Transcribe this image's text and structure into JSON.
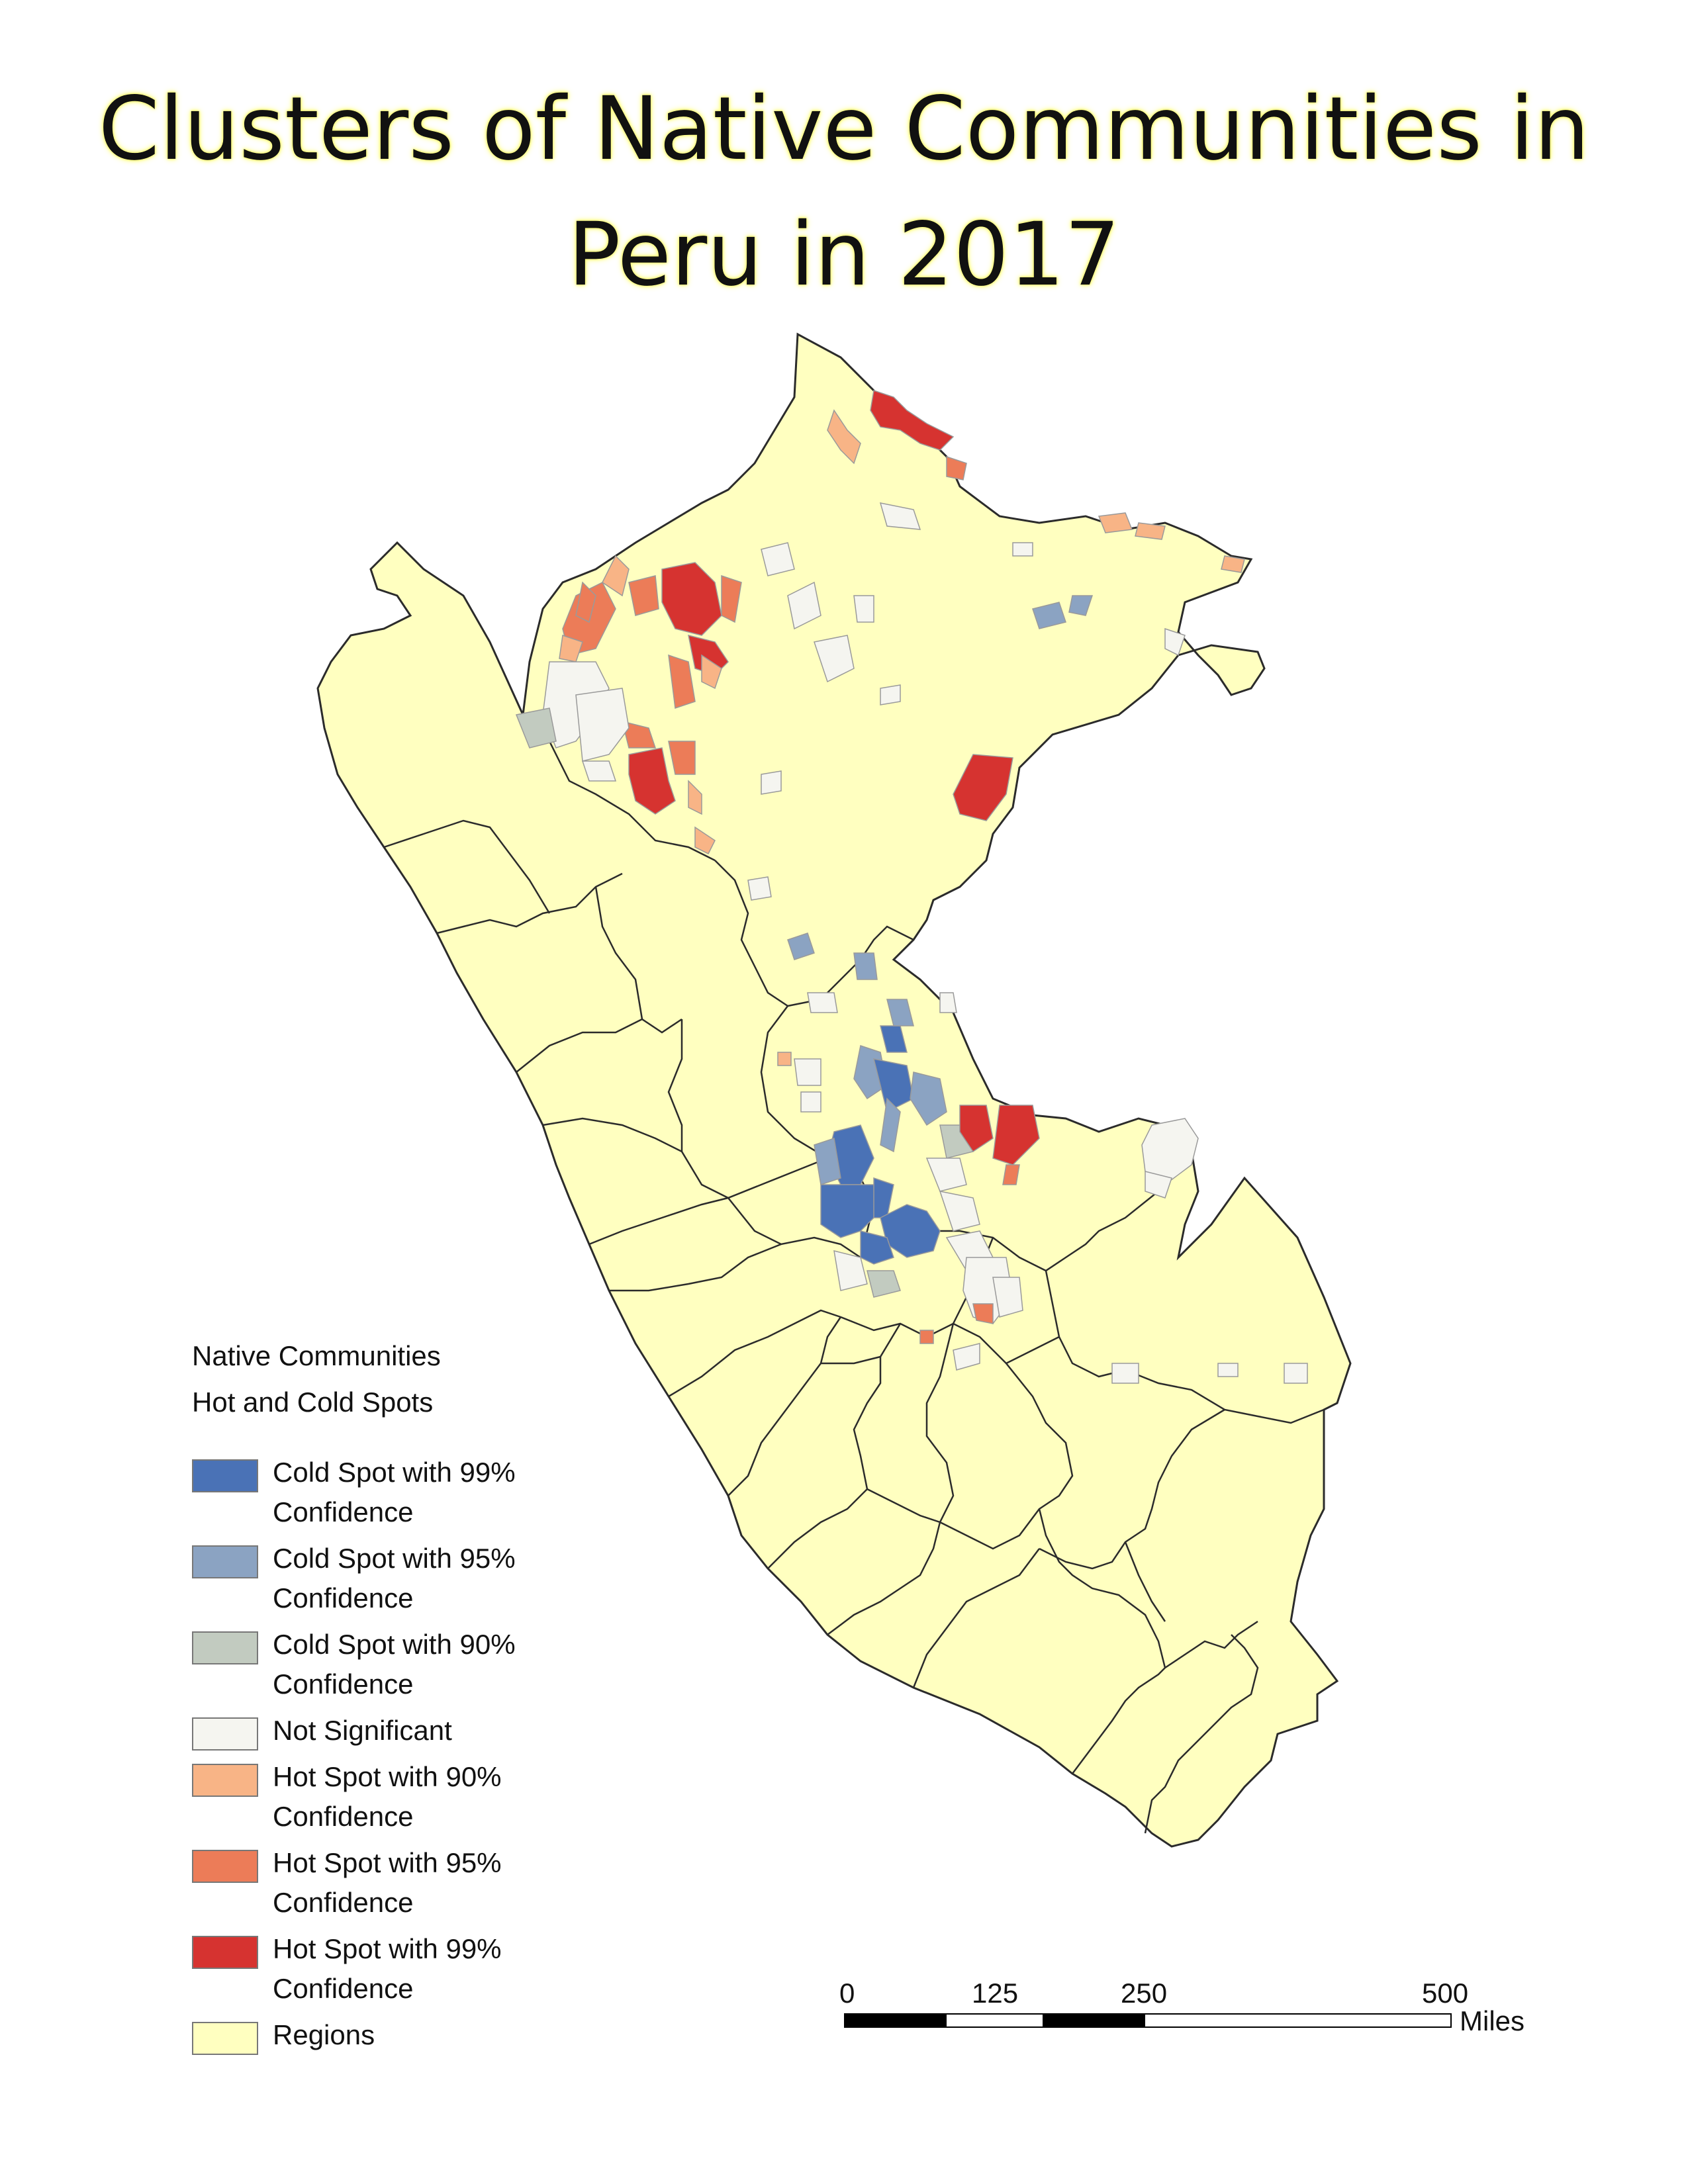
{
  "title": {
    "line1": "Clusters of Native Communities in",
    "line2": "Peru in 2017"
  },
  "colors": {
    "region_fill": "#ffffc0",
    "region_border": "#2b2b2b",
    "cold_99": "#4a72b6",
    "cold_95": "#8ba3c2",
    "cold_90": "#c2cbc0",
    "not_significant": "#f5f5f0",
    "hot_90": "#f8b486",
    "hot_95": "#ec7c58",
    "hot_99": "#d63330"
  },
  "legend": {
    "heading1": "Native Communities",
    "heading2": "Hot and Cold Spots",
    "items": [
      {
        "label": "Cold Spot with 99% Confidence",
        "color": "#4a72b6"
      },
      {
        "label": "Cold Spot with 95% Confidence",
        "color": "#8ba3c2"
      },
      {
        "label": "Cold Spot with 90% Confidence",
        "color": "#c2cbc0"
      },
      {
        "label": "Not Significant",
        "color": "#f5f5f0"
      },
      {
        "label": "Hot Spot with 90% Confidence",
        "color": "#f8b486"
      },
      {
        "label": "Hot Spot with 95% Confidence",
        "color": "#ec7c58"
      },
      {
        "label": "Hot Spot with 99% Confidence",
        "color": "#d63330"
      },
      {
        "label": "Regions",
        "color": "#ffffc0"
      }
    ]
  },
  "scale_bar": {
    "ticks": [
      "0",
      "125",
      "250",
      "500"
    ],
    "units": "Miles"
  }
}
